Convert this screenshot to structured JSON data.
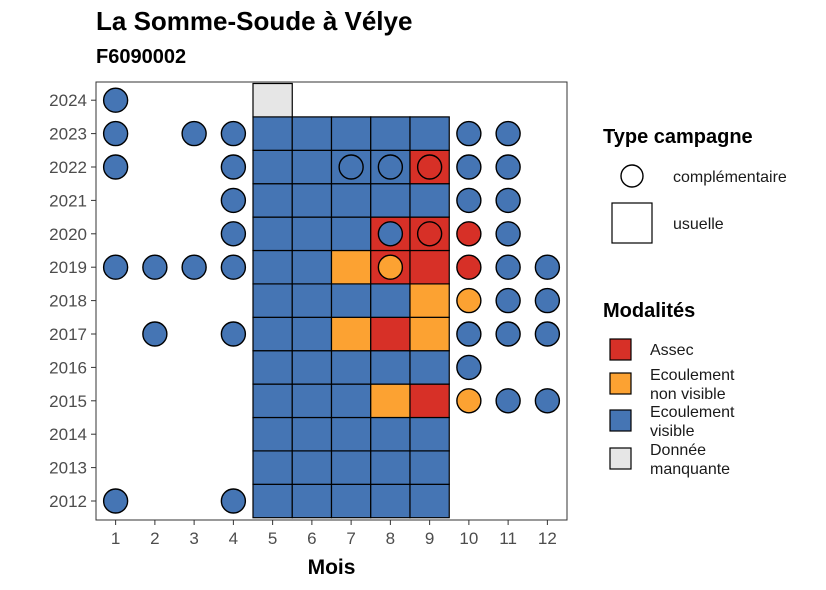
{
  "chart_data": {
    "type": "heatmap",
    "title": "La Somme-Soude à Vélye",
    "subtitle": "F6090002",
    "xlabel": "Mois",
    "ylabel": "",
    "x_ticks": [
      "1",
      "2",
      "3",
      "4",
      "5",
      "6",
      "7",
      "8",
      "9",
      "10",
      "11",
      "12"
    ],
    "y_ticks": [
      "2012",
      "2013",
      "2014",
      "2015",
      "2016",
      "2017",
      "2018",
      "2019",
      "2020",
      "2021",
      "2022",
      "2023",
      "2024"
    ],
    "grid": false,
    "legend_position": "right",
    "legend_shape": {
      "title": "Type campagne",
      "items": [
        {
          "label": "complémentaire",
          "shape": "circle"
        },
        {
          "label": "usuelle",
          "shape": "square"
        }
      ]
    },
    "legend_fill": {
      "title": "Modalités",
      "items": [
        {
          "key": "assec",
          "label": [
            "Assec"
          ],
          "color": "#d73027"
        },
        {
          "key": "nonvisible",
          "label": [
            "Ecoulement",
            "non visible"
          ],
          "color": "#fca232"
        },
        {
          "key": "visible",
          "label": [
            "Ecoulement",
            "visible"
          ],
          "color": "#4575b4"
        },
        {
          "key": "manquante",
          "label": [
            "Donnée",
            "manquante"
          ],
          "color": "#e6e6e6"
        }
      ]
    },
    "points": [
      {
        "year": 2012,
        "month": 1,
        "type": "complémentaire",
        "status": "visible"
      },
      {
        "year": 2012,
        "month": 4,
        "type": "complémentaire",
        "status": "visible"
      },
      {
        "year": 2012,
        "month": 5,
        "type": "usuelle",
        "status": "visible"
      },
      {
        "year": 2012,
        "month": 6,
        "type": "usuelle",
        "status": "visible"
      },
      {
        "year": 2012,
        "month": 7,
        "type": "usuelle",
        "status": "visible"
      },
      {
        "year": 2012,
        "month": 8,
        "type": "usuelle",
        "status": "visible"
      },
      {
        "year": 2012,
        "month": 9,
        "type": "usuelle",
        "status": "visible"
      },
      {
        "year": 2013,
        "month": 5,
        "type": "usuelle",
        "status": "visible"
      },
      {
        "year": 2013,
        "month": 6,
        "type": "usuelle",
        "status": "visible"
      },
      {
        "year": 2013,
        "month": 7,
        "type": "usuelle",
        "status": "visible"
      },
      {
        "year": 2013,
        "month": 8,
        "type": "usuelle",
        "status": "visible"
      },
      {
        "year": 2013,
        "month": 9,
        "type": "usuelle",
        "status": "visible"
      },
      {
        "year": 2014,
        "month": 5,
        "type": "usuelle",
        "status": "visible"
      },
      {
        "year": 2014,
        "month": 6,
        "type": "usuelle",
        "status": "visible"
      },
      {
        "year": 2014,
        "month": 7,
        "type": "usuelle",
        "status": "visible"
      },
      {
        "year": 2014,
        "month": 8,
        "type": "usuelle",
        "status": "visible"
      },
      {
        "year": 2014,
        "month": 9,
        "type": "usuelle",
        "status": "visible"
      },
      {
        "year": 2015,
        "month": 5,
        "type": "usuelle",
        "status": "visible"
      },
      {
        "year": 2015,
        "month": 6,
        "type": "usuelle",
        "status": "visible"
      },
      {
        "year": 2015,
        "month": 7,
        "type": "usuelle",
        "status": "visible"
      },
      {
        "year": 2015,
        "month": 8,
        "type": "usuelle",
        "status": "nonvisible"
      },
      {
        "year": 2015,
        "month": 9,
        "type": "usuelle",
        "status": "assec"
      },
      {
        "year": 2015,
        "month": 10,
        "type": "complémentaire",
        "status": "nonvisible"
      },
      {
        "year": 2015,
        "month": 11,
        "type": "complémentaire",
        "status": "visible"
      },
      {
        "year": 2015,
        "month": 12,
        "type": "complémentaire",
        "status": "visible"
      },
      {
        "year": 2016,
        "month": 5,
        "type": "usuelle",
        "status": "visible"
      },
      {
        "year": 2016,
        "month": 6,
        "type": "usuelle",
        "status": "visible"
      },
      {
        "year": 2016,
        "month": 7,
        "type": "usuelle",
        "status": "visible"
      },
      {
        "year": 2016,
        "month": 8,
        "type": "usuelle",
        "status": "visible"
      },
      {
        "year": 2016,
        "month": 9,
        "type": "usuelle",
        "status": "visible"
      },
      {
        "year": 2016,
        "month": 10,
        "type": "complémentaire",
        "status": "visible"
      },
      {
        "year": 2017,
        "month": 2,
        "type": "complémentaire",
        "status": "visible"
      },
      {
        "year": 2017,
        "month": 4,
        "type": "complémentaire",
        "status": "visible"
      },
      {
        "year": 2017,
        "month": 5,
        "type": "usuelle",
        "status": "visible"
      },
      {
        "year": 2017,
        "month": 6,
        "type": "usuelle",
        "status": "visible"
      },
      {
        "year": 2017,
        "month": 7,
        "type": "usuelle",
        "status": "nonvisible"
      },
      {
        "year": 2017,
        "month": 8,
        "type": "usuelle",
        "status": "assec"
      },
      {
        "year": 2017,
        "month": 9,
        "type": "usuelle",
        "status": "nonvisible"
      },
      {
        "year": 2017,
        "month": 10,
        "type": "complémentaire",
        "status": "visible"
      },
      {
        "year": 2017,
        "month": 11,
        "type": "complémentaire",
        "status": "visible"
      },
      {
        "year": 2017,
        "month": 12,
        "type": "complémentaire",
        "status": "visible"
      },
      {
        "year": 2018,
        "month": 5,
        "type": "usuelle",
        "status": "visible"
      },
      {
        "year": 2018,
        "month": 6,
        "type": "usuelle",
        "status": "visible"
      },
      {
        "year": 2018,
        "month": 7,
        "type": "usuelle",
        "status": "visible"
      },
      {
        "year": 2018,
        "month": 8,
        "type": "usuelle",
        "status": "visible"
      },
      {
        "year": 2018,
        "month": 9,
        "type": "usuelle",
        "status": "nonvisible"
      },
      {
        "year": 2018,
        "month": 10,
        "type": "complémentaire",
        "status": "nonvisible"
      },
      {
        "year": 2018,
        "month": 11,
        "type": "complémentaire",
        "status": "visible"
      },
      {
        "year": 2018,
        "month": 12,
        "type": "complémentaire",
        "status": "visible"
      },
      {
        "year": 2019,
        "month": 1,
        "type": "complémentaire",
        "status": "visible"
      },
      {
        "year": 2019,
        "month": 2,
        "type": "complémentaire",
        "status": "visible"
      },
      {
        "year": 2019,
        "month": 3,
        "type": "complémentaire",
        "status": "visible"
      },
      {
        "year": 2019,
        "month": 4,
        "type": "complémentaire",
        "status": "visible"
      },
      {
        "year": 2019,
        "month": 5,
        "type": "usuelle",
        "status": "visible"
      },
      {
        "year": 2019,
        "month": 6,
        "type": "usuelle",
        "status": "visible"
      },
      {
        "year": 2019,
        "month": 7,
        "type": "usuelle",
        "status": "nonvisible"
      },
      {
        "year": 2019,
        "month": 8,
        "type": "usuelle",
        "status": "assec"
      },
      {
        "year": 2019,
        "month": 8,
        "type": "complémentaire",
        "status": "nonvisible"
      },
      {
        "year": 2019,
        "month": 9,
        "type": "usuelle",
        "status": "assec"
      },
      {
        "year": 2019,
        "month": 10,
        "type": "complémentaire",
        "status": "assec"
      },
      {
        "year": 2019,
        "month": 11,
        "type": "complémentaire",
        "status": "visible"
      },
      {
        "year": 2019,
        "month": 12,
        "type": "complémentaire",
        "status": "visible"
      },
      {
        "year": 2020,
        "month": 4,
        "type": "complémentaire",
        "status": "visible"
      },
      {
        "year": 2020,
        "month": 5,
        "type": "usuelle",
        "status": "visible"
      },
      {
        "year": 2020,
        "month": 6,
        "type": "usuelle",
        "status": "visible"
      },
      {
        "year": 2020,
        "month": 7,
        "type": "usuelle",
        "status": "visible"
      },
      {
        "year": 2020,
        "month": 8,
        "type": "usuelle",
        "status": "assec"
      },
      {
        "year": 2020,
        "month": 8,
        "type": "complémentaire",
        "status": "visible"
      },
      {
        "year": 2020,
        "month": 9,
        "type": "usuelle",
        "status": "assec"
      },
      {
        "year": 2020,
        "month": 9,
        "type": "complémentaire",
        "status": "assec"
      },
      {
        "year": 2020,
        "month": 10,
        "type": "complémentaire",
        "status": "assec"
      },
      {
        "year": 2020,
        "month": 11,
        "type": "complémentaire",
        "status": "visible"
      },
      {
        "year": 2021,
        "month": 4,
        "type": "complémentaire",
        "status": "visible"
      },
      {
        "year": 2021,
        "month": 5,
        "type": "usuelle",
        "status": "visible"
      },
      {
        "year": 2021,
        "month": 6,
        "type": "usuelle",
        "status": "visible"
      },
      {
        "year": 2021,
        "month": 7,
        "type": "usuelle",
        "status": "visible"
      },
      {
        "year": 2021,
        "month": 8,
        "type": "usuelle",
        "status": "visible"
      },
      {
        "year": 2021,
        "month": 9,
        "type": "usuelle",
        "status": "visible"
      },
      {
        "year": 2021,
        "month": 10,
        "type": "complémentaire",
        "status": "visible"
      },
      {
        "year": 2021,
        "month": 11,
        "type": "complémentaire",
        "status": "visible"
      },
      {
        "year": 2022,
        "month": 1,
        "type": "complémentaire",
        "status": "visible"
      },
      {
        "year": 2022,
        "month": 4,
        "type": "complémentaire",
        "status": "visible"
      },
      {
        "year": 2022,
        "month": 5,
        "type": "usuelle",
        "status": "visible"
      },
      {
        "year": 2022,
        "month": 6,
        "type": "usuelle",
        "status": "visible"
      },
      {
        "year": 2022,
        "month": 7,
        "type": "usuelle",
        "status": "visible"
      },
      {
        "year": 2022,
        "month": 7,
        "type": "complémentaire",
        "status": "visible"
      },
      {
        "year": 2022,
        "month": 8,
        "type": "usuelle",
        "status": "visible"
      },
      {
        "year": 2022,
        "month": 8,
        "type": "complémentaire",
        "status": "visible"
      },
      {
        "year": 2022,
        "month": 9,
        "type": "usuelle",
        "status": "assec"
      },
      {
        "year": 2022,
        "month": 9,
        "type": "complémentaire",
        "status": "assec"
      },
      {
        "year": 2022,
        "month": 10,
        "type": "complémentaire",
        "status": "visible"
      },
      {
        "year": 2022,
        "month": 11,
        "type": "complémentaire",
        "status": "visible"
      },
      {
        "year": 2023,
        "month": 1,
        "type": "complémentaire",
        "status": "visible"
      },
      {
        "year": 2023,
        "month": 3,
        "type": "complémentaire",
        "status": "visible"
      },
      {
        "year": 2023,
        "month": 4,
        "type": "complémentaire",
        "status": "visible"
      },
      {
        "year": 2023,
        "month": 5,
        "type": "usuelle",
        "status": "visible"
      },
      {
        "year": 2023,
        "month": 6,
        "type": "usuelle",
        "status": "visible"
      },
      {
        "year": 2023,
        "month": 7,
        "type": "usuelle",
        "status": "visible"
      },
      {
        "year": 2023,
        "month": 8,
        "type": "usuelle",
        "status": "visible"
      },
      {
        "year": 2023,
        "month": 9,
        "type": "usuelle",
        "status": "visible"
      },
      {
        "year": 2023,
        "month": 10,
        "type": "complémentaire",
        "status": "visible"
      },
      {
        "year": 2023,
        "month": 11,
        "type": "complémentaire",
        "status": "visible"
      },
      {
        "year": 2024,
        "month": 1,
        "type": "complémentaire",
        "status": "visible"
      },
      {
        "year": 2024,
        "month": 5,
        "type": "usuelle",
        "status": "manquante"
      }
    ]
  }
}
